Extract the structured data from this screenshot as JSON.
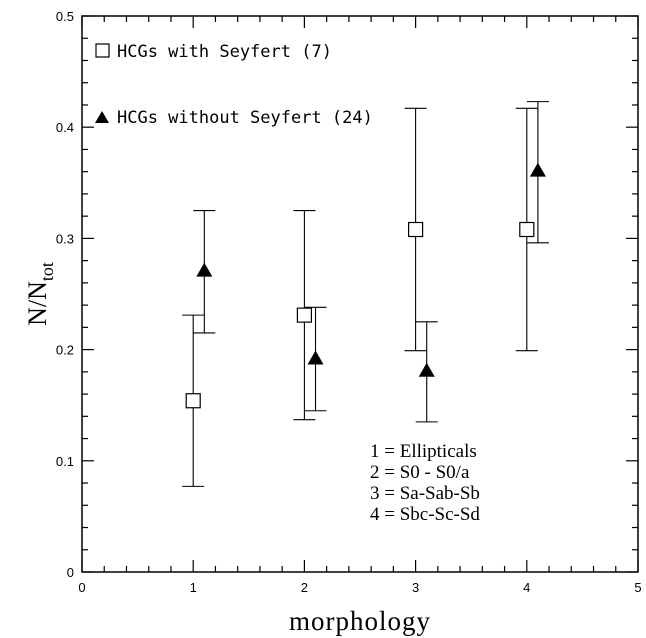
{
  "chart_data": {
    "type": "scatter",
    "xlabel": "morphology",
    "ylabel_main": "N/N",
    "ylabel_sub": "tot",
    "xlim": [
      0,
      5
    ],
    "ylim": [
      0,
      0.5
    ],
    "x_ticks": [
      "0",
      "1",
      "2",
      "3",
      "4",
      "5"
    ],
    "y_ticks": [
      "0",
      "0.1",
      "0.2",
      "0.3",
      "0.4",
      "0.5"
    ],
    "grid": false,
    "legend_position": "top-left",
    "series": [
      {
        "name": "HCGs with Seyfert (7)",
        "marker": "open-square",
        "points": [
          {
            "x": 1,
            "y": 0.154,
            "err_low": 0.077,
            "err_high": 0.231
          },
          {
            "x": 2,
            "y": 0.231,
            "err_low": 0.137,
            "err_high": 0.325
          },
          {
            "x": 3,
            "y": 0.308,
            "err_low": 0.199,
            "err_high": 0.417
          },
          {
            "x": 4,
            "y": 0.308,
            "err_low": 0.199,
            "err_high": 0.417
          }
        ]
      },
      {
        "name": "HCGs without Seyfert (24)",
        "marker": "filled-triangle",
        "points": [
          {
            "x": 1.1,
            "y": 0.271,
            "err_low": 0.215,
            "err_high": 0.325
          },
          {
            "x": 2.1,
            "y": 0.192,
            "err_low": 0.145,
            "err_high": 0.238
          },
          {
            "x": 3.1,
            "y": 0.181,
            "err_low": 0.135,
            "err_high": 0.225
          },
          {
            "x": 4.1,
            "y": 0.361,
            "err_low": 0.296,
            "err_high": 0.423
          }
        ]
      }
    ],
    "annotations": [
      "1 = Ellipticals",
      "2 = S0 - S0/a",
      "3 = Sa-Sab-Sb",
      "4 = Sbc-Sc-Sd"
    ]
  }
}
